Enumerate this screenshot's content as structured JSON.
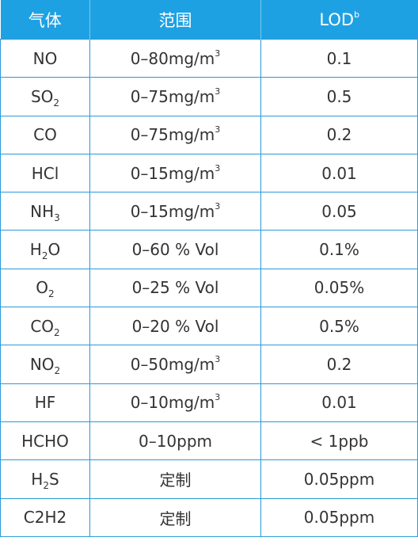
{
  "table": {
    "headers": {
      "gas": "气体",
      "range": "范围",
      "lod": "LOD",
      "lod_sup": "b"
    },
    "rows": [
      {
        "gas_pre": "NO",
        "gas_sub": "",
        "gas_post": "",
        "range_main": "0–80mg/m",
        "range_sup": "3",
        "lod": "0.1"
      },
      {
        "gas_pre": "SO",
        "gas_sub": "2",
        "gas_post": "",
        "range_main": "0–75mg/m",
        "range_sup": "3",
        "lod": "0.5"
      },
      {
        "gas_pre": "CO",
        "gas_sub": "",
        "gas_post": "",
        "range_main": "0–75mg/m",
        "range_sup": "3",
        "lod": "0.2"
      },
      {
        "gas_pre": "HCl",
        "gas_sub": "",
        "gas_post": "",
        "range_main": "0–15mg/m",
        "range_sup": "3",
        "lod": "0.01"
      },
      {
        "gas_pre": "NH",
        "gas_sub": "3",
        "gas_post": "",
        "range_main": "0–15mg/m",
        "range_sup": "3",
        "lod": "0.05"
      },
      {
        "gas_pre": "H",
        "gas_sub": "2",
        "gas_post": "O",
        "range_main": "0–60 % Vol",
        "range_sup": "",
        "lod": "0.1%"
      },
      {
        "gas_pre": "O",
        "gas_sub": "2",
        "gas_post": "",
        "range_main": "0–25 % Vol",
        "range_sup": "",
        "lod": "0.05%"
      },
      {
        "gas_pre": "CO",
        "gas_sub": "2",
        "gas_post": "",
        "range_main": "0–20 % Vol",
        "range_sup": "",
        "lod": "0.5%"
      },
      {
        "gas_pre": "NO",
        "gas_sub": "2",
        "gas_post": "",
        "range_main": "0–50mg/m",
        "range_sup": "3",
        "lod": "0.2"
      },
      {
        "gas_pre": "HF",
        "gas_sub": "",
        "gas_post": "",
        "range_main": "0–10mg/m",
        "range_sup": "3",
        "lod": "0.01"
      },
      {
        "gas_pre": "HCHO",
        "gas_sub": "",
        "gas_post": "",
        "range_main": "0–10ppm",
        "range_sup": "",
        "lod": "< 1ppb"
      },
      {
        "gas_pre": "H",
        "gas_sub": "2",
        "gas_post": "S",
        "range_main": "定制",
        "range_sup": "",
        "lod": "0.05ppm"
      },
      {
        "gas_pre": "C2H2",
        "gas_sub": "",
        "gas_post": "",
        "range_main": "定制",
        "range_sup": "",
        "lod": "0.05ppm"
      }
    ]
  },
  "colors": {
    "header_bg": "#1ea1e3",
    "border": "#2a9ad8",
    "text": "#333333"
  }
}
